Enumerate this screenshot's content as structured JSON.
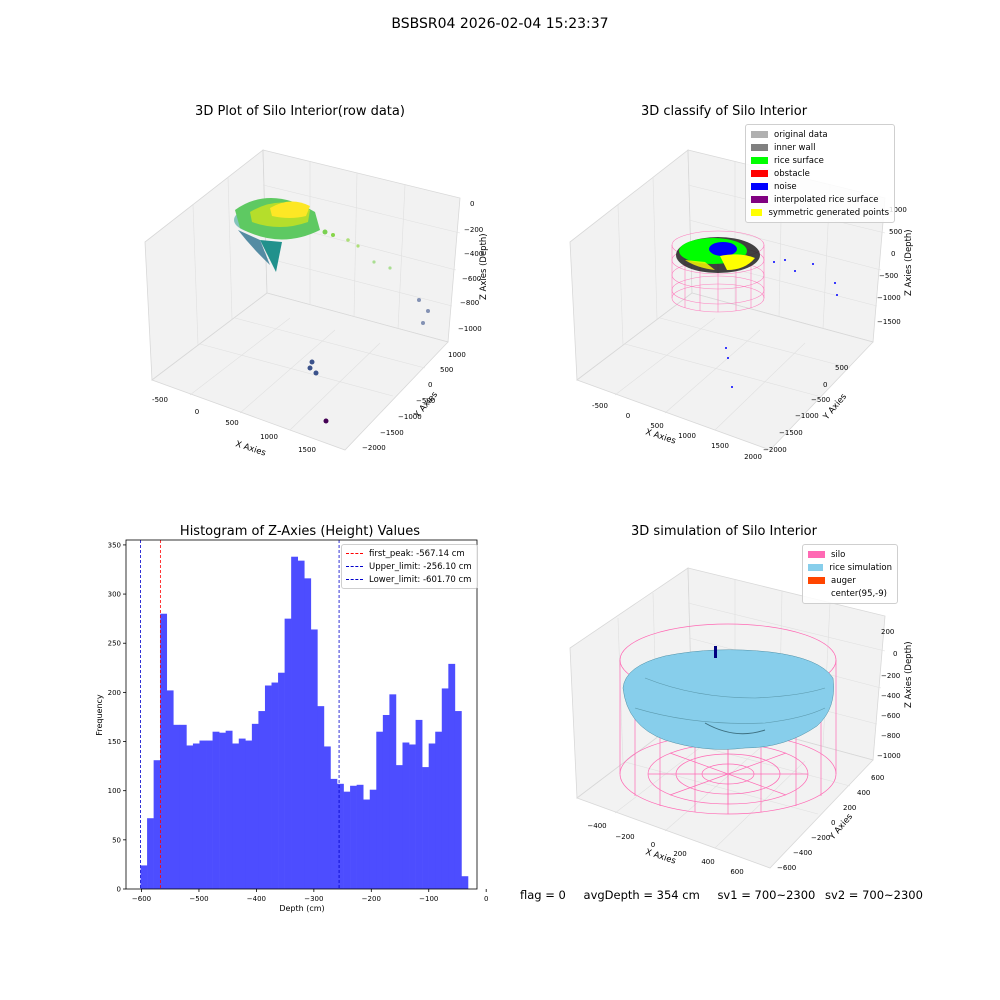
{
  "suptitle": "BSBSR04 2026-02-04 15:23:37",
  "chart_data": [
    {
      "type": "scatter",
      "title": "3D Plot of Silo Interior(row data)",
      "xlabel": "X Axies",
      "ylabel": "Y Axies",
      "zlabel": "Z Axies (Depth)",
      "x_ticks": [
        "-500",
        "0",
        "500",
        "1000",
        "1500"
      ],
      "y_ticks": [
        "1000",
        "500",
        "0",
        "−500",
        "−1000",
        "−1500",
        "−2000"
      ],
      "z_ticks": [
        "0",
        "−200",
        "−400",
        "−600",
        "−800",
        "−1000"
      ],
      "grid": true
    },
    {
      "type": "scatter",
      "title": "3D classify of Silo Interior",
      "xlabel": "X Axies",
      "ylabel": "Y Axies",
      "zlabel": "Z Axies (Depth)",
      "x_ticks": [
        "-500",
        "0",
        "500",
        "1000",
        "1500",
        "2000"
      ],
      "y_ticks": [
        "500",
        "0",
        "−500",
        "−1000",
        "−1500",
        "−2000"
      ],
      "z_ticks": [
        "1000",
        "500",
        "0",
        "−500",
        "−1000",
        "−1500"
      ],
      "legend": [
        {
          "label": "original data",
          "color": "#b0b0b0"
        },
        {
          "label": "inner wall",
          "color": "#808080"
        },
        {
          "label": "rice surface",
          "color": "#00ff00"
        },
        {
          "label": "obstacle",
          "color": "#ff0000"
        },
        {
          "label": "noise",
          "color": "#0000ff"
        },
        {
          "label": "interpolated rice surface",
          "color": "#800080"
        },
        {
          "label": "symmetric generated points",
          "color": "#ffff00"
        }
      ],
      "legend_position": "top-right",
      "grid": true
    },
    {
      "type": "bar",
      "title": "Histogram of Z-Axies (Height) Values",
      "xlabel": "Depth (cm)",
      "ylabel": "Frequency",
      "xlim": [
        -627,
        -16
      ],
      "ylim": [
        0,
        355
      ],
      "x_ticks": [
        -600,
        -500,
        -400,
        -300,
        -200,
        -100,
        0
      ],
      "y_ticks": [
        0,
        50,
        100,
        150,
        200,
        250,
        300,
        350
      ],
      "bin_start": -601.7,
      "bin_width": 11.4,
      "values": [
        24,
        72,
        131,
        280,
        202,
        167,
        167,
        146,
        148,
        151,
        151,
        160,
        159,
        161,
        148,
        153,
        151,
        168,
        181,
        207,
        210,
        220,
        275,
        338,
        334,
        316,
        264,
        186,
        145,
        112,
        107,
        99,
        105,
        106,
        91,
        101,
        160,
        177,
        198,
        126,
        149,
        147,
        172,
        124,
        148,
        160,
        204,
        229,
        181,
        13
      ],
      "bar_color": "#4d4dff",
      "vlines": [
        {
          "label": "first_peak: -567.14 cm",
          "x": -567.14,
          "color": "#ff0000"
        },
        {
          "label": "Upper_limit: -256.10 cm",
          "x": -256.1,
          "color": "#0000cc"
        },
        {
          "label": "Lower_limit: -601.70 cm",
          "x": -601.7,
          "color": "#0000cc"
        }
      ],
      "legend_position": "top-right",
      "grid": false
    },
    {
      "type": "scatter",
      "title": "3D simulation of Silo Interior",
      "xlabel": "X Axies",
      "ylabel": "Y Axies",
      "zlabel": "Z Axies (Depth)",
      "x_ticks": [
        "−400",
        "−200",
        "0",
        "200",
        "400",
        "600"
      ],
      "y_ticks": [
        "600",
        "400",
        "200",
        "0",
        "−200",
        "−400",
        "−600"
      ],
      "z_ticks": [
        "200",
        "0",
        "−200",
        "−400",
        "−600",
        "−800",
        "−1000"
      ],
      "legend": [
        {
          "label": "silo",
          "color": "#ff69b4"
        },
        {
          "label": "rice simulation",
          "color": "#87ceeb"
        },
        {
          "label": "auger",
          "color": "#ff4500"
        },
        {
          "label": "center(95,-9)",
          "color": ""
        }
      ],
      "legend_position": "top-right",
      "grid": true
    }
  ],
  "status": {
    "flag": "flag = 0",
    "avg_depth": "avgDepth = 354 cm",
    "sv1": "sv1 = 700~2300",
    "sv2": "sv2 = 700~2300"
  }
}
